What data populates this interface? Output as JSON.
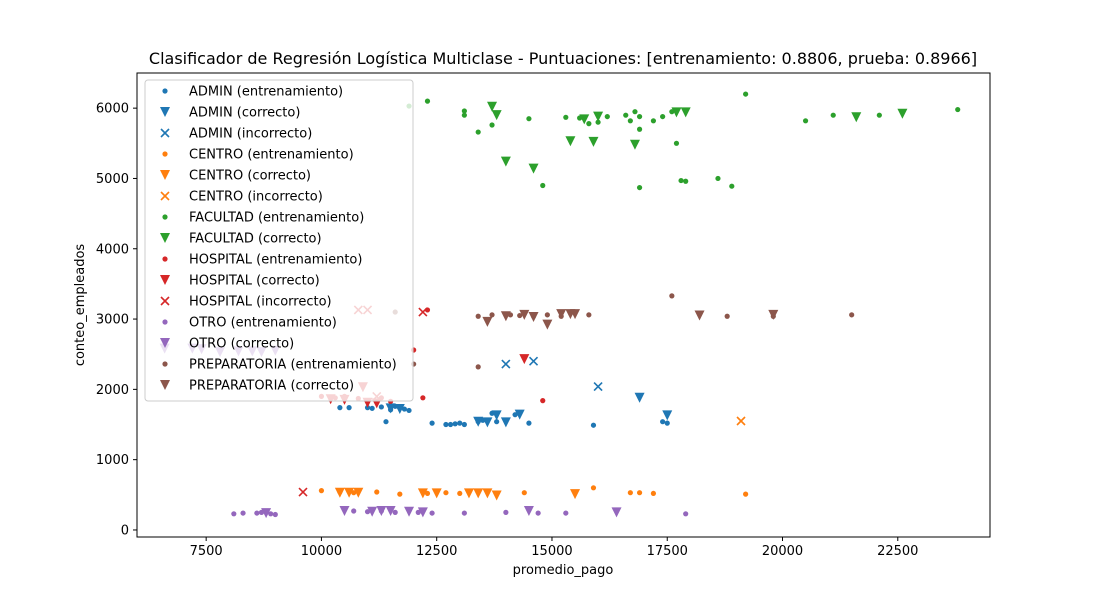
{
  "chart_data": {
    "type": "scatter",
    "title": "Clasificador de Regresión Logística Multiclase - Puntuaciones: [entrenamiento: 0.8806, prueba: 0.8966]",
    "xlabel": "promedio_pago",
    "ylabel": "conteo_empleados",
    "xlim": [
      6000,
      24500
    ],
    "ylim": [
      -100,
      6500
    ],
    "xticks": [
      7500,
      10000,
      12500,
      15000,
      17500,
      20000,
      22500
    ],
    "yticks": [
      0,
      1000,
      2000,
      3000,
      4000,
      5000,
      6000
    ],
    "legend_position": "upper-left",
    "grid": false,
    "series": [
      {
        "name": "ADMIN (entrenamiento)",
        "color": "#1f77b4",
        "marker": "dot",
        "points": [
          [
            10400,
            1740
          ],
          [
            10600,
            1740
          ],
          [
            11100,
            1730
          ],
          [
            11400,
            1540
          ],
          [
            11500,
            1710
          ],
          [
            11600,
            1760
          ],
          [
            11700,
            1740
          ],
          [
            11800,
            1720
          ],
          [
            11900,
            1700
          ],
          [
            12400,
            1520
          ],
          [
            12700,
            1500
          ],
          [
            12800,
            1500
          ],
          [
            12900,
            1510
          ],
          [
            13000,
            1520
          ],
          [
            13100,
            1500
          ],
          [
            13400,
            1540
          ],
          [
            13500,
            1560
          ],
          [
            13700,
            1660
          ],
          [
            13800,
            1540
          ],
          [
            14000,
            1560
          ],
          [
            14200,
            1640
          ],
          [
            14500,
            1520
          ],
          [
            15900,
            1490
          ],
          [
            17400,
            1540
          ],
          [
            17500,
            1520
          ],
          [
            11300,
            1750
          ],
          [
            11000,
            1740
          ]
        ]
      },
      {
        "name": "ADMIN (correcto)",
        "color": "#1f77b4",
        "marker": "triangle",
        "points": [
          [
            11500,
            1730
          ],
          [
            11700,
            1720
          ],
          [
            13400,
            1540
          ],
          [
            13600,
            1530
          ],
          [
            13800,
            1630
          ],
          [
            14000,
            1530
          ],
          [
            14300,
            1640
          ],
          [
            16900,
            1880
          ],
          [
            17500,
            1630
          ]
        ]
      },
      {
        "name": "ADMIN (incorrecto)",
        "color": "#1f77b4",
        "marker": "x",
        "points": [
          [
            14000,
            2360
          ],
          [
            14600,
            2400
          ],
          [
            16000,
            2040
          ]
        ]
      },
      {
        "name": "CENTRO (entrenamiento)",
        "color": "#ff7f0e",
        "marker": "dot",
        "points": [
          [
            10000,
            560
          ],
          [
            10400,
            540
          ],
          [
            10600,
            550
          ],
          [
            10700,
            530
          ],
          [
            10800,
            560
          ],
          [
            11200,
            540
          ],
          [
            11700,
            510
          ],
          [
            12300,
            520
          ],
          [
            12700,
            530
          ],
          [
            13000,
            520
          ],
          [
            13200,
            550
          ],
          [
            14400,
            530
          ],
          [
            15900,
            600
          ],
          [
            16700,
            530
          ],
          [
            16900,
            530
          ],
          [
            17200,
            520
          ],
          [
            19200,
            510
          ]
        ]
      },
      {
        "name": "CENTRO (correcto)",
        "color": "#ff7f0e",
        "marker": "triangle",
        "points": [
          [
            10400,
            530
          ],
          [
            10600,
            530
          ],
          [
            10800,
            530
          ],
          [
            12200,
            520
          ],
          [
            12500,
            520
          ],
          [
            13200,
            520
          ],
          [
            13400,
            520
          ],
          [
            13600,
            520
          ],
          [
            13800,
            490
          ],
          [
            15500,
            510
          ]
        ]
      },
      {
        "name": "CENTRO (incorrecto)",
        "color": "#ff7f0e",
        "marker": "x",
        "points": [
          [
            19100,
            1550
          ]
        ]
      },
      {
        "name": "FACULTAD (entrenamiento)",
        "color": "#2ca02c",
        "marker": "dot",
        "points": [
          [
            11900,
            6030
          ],
          [
            12300,
            6100
          ],
          [
            13100,
            5960
          ],
          [
            13100,
            5900
          ],
          [
            13400,
            5660
          ],
          [
            13700,
            5760
          ],
          [
            14500,
            5850
          ],
          [
            14800,
            4900
          ],
          [
            15300,
            5870
          ],
          [
            15600,
            5860
          ],
          [
            15800,
            5780
          ],
          [
            16000,
            5800
          ],
          [
            16200,
            5880
          ],
          [
            16600,
            5900
          ],
          [
            16700,
            5820
          ],
          [
            16800,
            5950
          ],
          [
            16900,
            5700
          ],
          [
            16900,
            5880
          ],
          [
            17200,
            5820
          ],
          [
            17400,
            5880
          ],
          [
            17600,
            5950
          ],
          [
            17700,
            5500
          ],
          [
            17800,
            4970
          ],
          [
            17900,
            4960
          ],
          [
            18600,
            5000
          ],
          [
            18900,
            4890
          ],
          [
            19200,
            6200
          ],
          [
            20500,
            5820
          ],
          [
            21100,
            5900
          ],
          [
            22100,
            5900
          ],
          [
            23800,
            5980
          ],
          [
            16900,
            4870
          ]
        ]
      },
      {
        "name": "FACULTAD (correcto)",
        "color": "#2ca02c",
        "marker": "triangle",
        "points": [
          [
            13700,
            6020
          ],
          [
            13800,
            5900
          ],
          [
            14000,
            5240
          ],
          [
            14600,
            5140
          ],
          [
            15400,
            5530
          ],
          [
            15700,
            5840
          ],
          [
            15900,
            5520
          ],
          [
            16000,
            5880
          ],
          [
            16800,
            5480
          ],
          [
            17700,
            5940
          ],
          [
            17900,
            5940
          ],
          [
            21600,
            5870
          ],
          [
            22600,
            5920
          ]
        ]
      },
      {
        "name": "HOSPITAL (entrenamiento)",
        "color": "#d62728",
        "marker": "dot",
        "points": [
          [
            10000,
            1900
          ],
          [
            10300,
            1880
          ],
          [
            10500,
            1900
          ],
          [
            10800,
            1870
          ],
          [
            11300,
            1880
          ],
          [
            11500,
            1830
          ],
          [
            12000,
            2560
          ],
          [
            12200,
            1880
          ],
          [
            14800,
            1840
          ],
          [
            12300,
            3130
          ]
        ]
      },
      {
        "name": "HOSPITAL (correcto)",
        "color": "#d62728",
        "marker": "triangle",
        "points": [
          [
            10200,
            1860
          ],
          [
            10500,
            1850
          ],
          [
            10900,
            2030
          ],
          [
            11000,
            1810
          ],
          [
            11200,
            1800
          ],
          [
            14400,
            2430
          ]
        ]
      },
      {
        "name": "HOSPITAL (incorrecto)",
        "color": "#d62728",
        "marker": "x",
        "points": [
          [
            9600,
            540
          ],
          [
            10800,
            3130
          ],
          [
            11000,
            3130
          ],
          [
            12200,
            3100
          ],
          [
            11200,
            1900
          ]
        ]
      },
      {
        "name": "OTRO (entrenamiento)",
        "color": "#9467bd",
        "marker": "dot",
        "points": [
          [
            8100,
            230
          ],
          [
            8300,
            240
          ],
          [
            8600,
            240
          ],
          [
            8700,
            250
          ],
          [
            8900,
            230
          ],
          [
            9000,
            220
          ],
          [
            10700,
            270
          ],
          [
            11000,
            260
          ],
          [
            11300,
            270
          ],
          [
            11600,
            250
          ],
          [
            12100,
            250
          ],
          [
            12400,
            240
          ],
          [
            13100,
            240
          ],
          [
            14000,
            250
          ],
          [
            14700,
            240
          ],
          [
            15300,
            240
          ],
          [
            17900,
            230
          ],
          [
            8800,
            250
          ]
        ]
      },
      {
        "name": "OTRO (correcto)",
        "color": "#9467bd",
        "marker": "triangle",
        "points": [
          [
            6600,
            2580
          ],
          [
            7200,
            2580
          ],
          [
            7400,
            2570
          ],
          [
            7800,
            2530
          ],
          [
            8200,
            2540
          ],
          [
            8500,
            2540
          ],
          [
            8700,
            2530
          ],
          [
            9000,
            2550
          ],
          [
            10500,
            270
          ],
          [
            11100,
            260
          ],
          [
            11300,
            270
          ],
          [
            11500,
            270
          ],
          [
            11900,
            260
          ],
          [
            12200,
            250
          ],
          [
            14500,
            270
          ],
          [
            16400,
            250
          ],
          [
            8800,
            240
          ]
        ]
      },
      {
        "name": "PREPARATORIA (entrenamiento)",
        "color": "#8c564b",
        "marker": "dot",
        "points": [
          [
            13400,
            2320
          ],
          [
            13400,
            3040
          ],
          [
            13700,
            3060
          ],
          [
            14100,
            3060
          ],
          [
            14300,
            3050
          ],
          [
            14600,
            3040
          ],
          [
            14900,
            3060
          ],
          [
            15200,
            3040
          ],
          [
            15800,
            3060
          ],
          [
            17600,
            3330
          ],
          [
            18800,
            3040
          ],
          [
            19800,
            3040
          ],
          [
            21500,
            3060
          ],
          [
            11600,
            3100
          ],
          [
            12000,
            2360
          ]
        ]
      },
      {
        "name": "PREPARATORIA (correcto)",
        "color": "#8c564b",
        "marker": "triangle",
        "points": [
          [
            13600,
            2960
          ],
          [
            14000,
            3040
          ],
          [
            14400,
            3060
          ],
          [
            14600,
            3030
          ],
          [
            14900,
            2920
          ],
          [
            15200,
            3070
          ],
          [
            15400,
            3070
          ],
          [
            15500,
            3070
          ],
          [
            18200,
            3050
          ],
          [
            19800,
            3060
          ]
        ]
      }
    ]
  }
}
